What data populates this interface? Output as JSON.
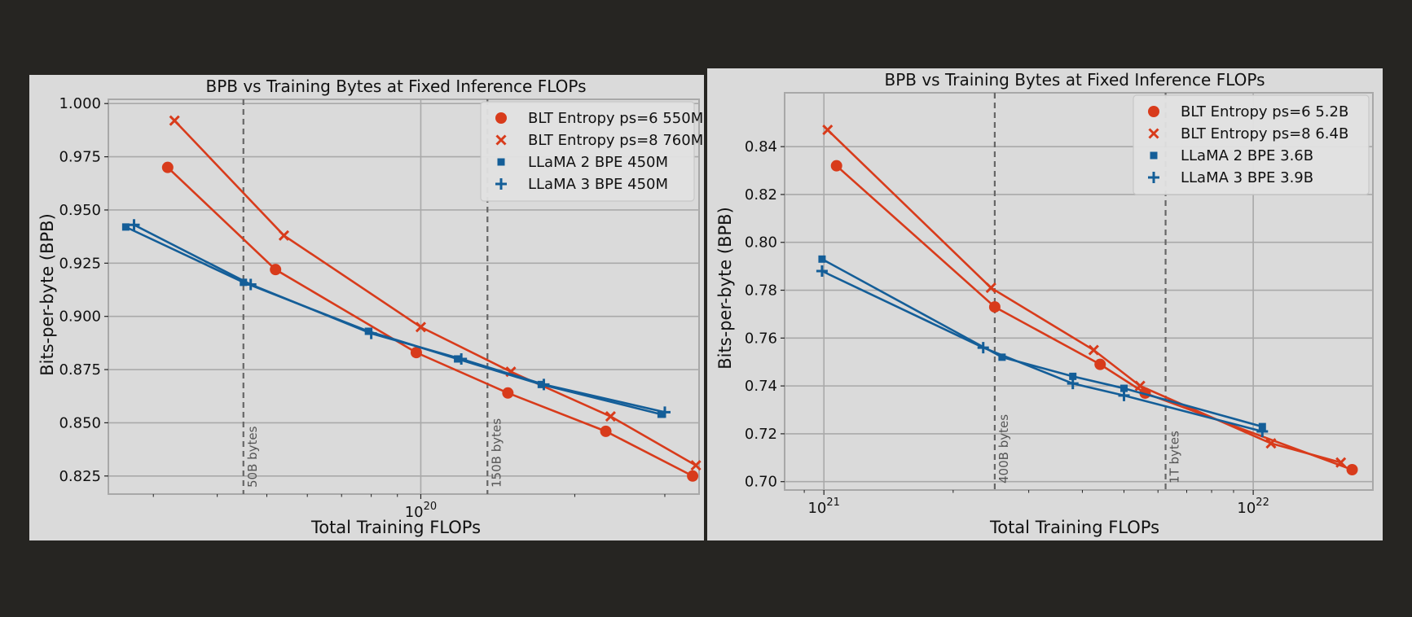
{
  "chart_data": [
    {
      "type": "line",
      "title": "BPB vs Training Bytes at Fixed Inference FLOPs",
      "xlabel": "Total Training FLOPs",
      "ylabel": "Bits-per-byte (BPB)",
      "xscale": "log",
      "xlim": [
        2.45e+19,
        3.5e+20
      ],
      "ylim": [
        0.8165,
        1.002
      ],
      "yticks": [
        0.825,
        0.85,
        0.875,
        0.9,
        0.925,
        0.95,
        0.975,
        1.0
      ],
      "ytick_labels": [
        "0.825",
        "0.850",
        "0.875",
        "0.900",
        "0.925",
        "0.950",
        "0.975",
        "1.000"
      ],
      "xticks": [
        {
          "value": 1e+20,
          "base": "10",
          "exp": "20"
        }
      ],
      "grid": true,
      "legend_position": "top-right",
      "vlines": [
        {
          "x": 4.5e+19,
          "label": "50B bytes"
        },
        {
          "x": 1.35e+20,
          "label": "150B bytes"
        }
      ],
      "series": [
        {
          "name": "BLT Entropy ps=6 550M",
          "color": "#d83b1b",
          "marker": "circle",
          "x": [
            3.2e+19,
            5.2e+19,
            9.8e+19,
            1.48e+20,
            2.3e+20,
            3.4e+20
          ],
          "y": [
            0.97,
            0.922,
            0.883,
            0.864,
            0.846,
            0.825
          ]
        },
        {
          "name": "BLT Entropy ps=8 760M",
          "color": "#d83b1b",
          "marker": "x",
          "x": [
            3.3e+19,
            5.4e+19,
            1e+20,
            1.5e+20,
            2.35e+20,
            3.45e+20
          ],
          "y": [
            0.992,
            0.938,
            0.895,
            0.874,
            0.853,
            0.83
          ]
        },
        {
          "name": "LLaMA 2 BPE 450M",
          "color": "#145e98",
          "marker": "square",
          "x": [
            2.65e+19,
            4.5e+19,
            7.9e+19,
            1.18e+20,
            1.72e+20,
            2.95e+20
          ],
          "y": [
            0.942,
            0.916,
            0.893,
            0.88,
            0.868,
            0.854
          ]
        },
        {
          "name": "LLaMA 3 BPE 450M",
          "color": "#145e98",
          "marker": "plus",
          "x": [
            2.75e+19,
            4.65e+19,
            8e+19,
            1.2e+20,
            1.74e+20,
            3e+20
          ],
          "y": [
            0.943,
            0.915,
            0.892,
            0.88,
            0.868,
            0.855
          ]
        }
      ]
    },
    {
      "type": "line",
      "title": "BPB vs Training Bytes at Fixed Inference FLOPs",
      "xlabel": "Total Training FLOPs",
      "ylabel": "Bits-per-byte (BPB)",
      "xscale": "log",
      "xlim": [
        8.1e+20,
        1.9e+22
      ],
      "ylim": [
        0.6965,
        0.8625
      ],
      "yticks": [
        0.7,
        0.72,
        0.74,
        0.76,
        0.78,
        0.8,
        0.82,
        0.84
      ],
      "ytick_labels": [
        "0.70",
        "0.72",
        "0.74",
        "0.76",
        "0.78",
        "0.80",
        "0.82",
        "0.84"
      ],
      "xticks": [
        {
          "value": 1e+21,
          "base": "10",
          "exp": "21"
        },
        {
          "value": 1e+22,
          "base": "10",
          "exp": "22"
        }
      ],
      "grid": true,
      "legend_position": "top-right",
      "vlines": [
        {
          "x": 2.5e+21,
          "label": "400B bytes"
        },
        {
          "x": 6.25e+21,
          "label": "1T bytes"
        }
      ],
      "series": [
        {
          "name": "BLT Entropy ps=6 5.2B",
          "color": "#d83b1b",
          "marker": "circle",
          "x": [
            1.07e+21,
            2.5e+21,
            4.4e+21,
            5.6e+21,
            1.7e+22
          ],
          "y": [
            0.832,
            0.773,
            0.749,
            0.737,
            0.705
          ]
        },
        {
          "name": "BLT Entropy ps=8 6.4B",
          "color": "#d83b1b",
          "marker": "x",
          "x": [
            1.02e+21,
            2.45e+21,
            4.25e+21,
            5.45e+21,
            1.1e+22,
            1.6e+22
          ],
          "y": [
            0.847,
            0.781,
            0.755,
            0.74,
            0.716,
            0.708
          ]
        },
        {
          "name": "LLaMA 2 BPE 3.6B",
          "color": "#145e98",
          "marker": "square",
          "x": [
            9.9e+20,
            2.6e+21,
            3.8e+21,
            5e+21,
            1.05e+22
          ],
          "y": [
            0.793,
            0.752,
            0.744,
            0.739,
            0.723
          ]
        },
        {
          "name": "LLaMA 3 BPE 3.9B",
          "color": "#145e98",
          "marker": "plus",
          "x": [
            9.9e+20,
            2.35e+21,
            3.8e+21,
            5e+21,
            1.05e+22
          ],
          "y": [
            0.788,
            0.756,
            0.741,
            0.736,
            0.721
          ]
        }
      ]
    }
  ]
}
